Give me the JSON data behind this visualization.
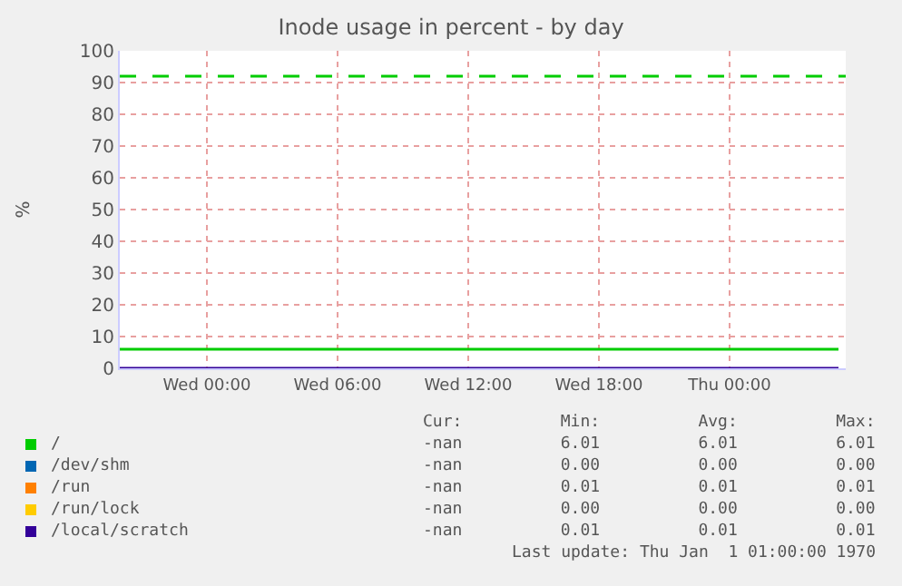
{
  "chart_data": {
    "type": "line",
    "title": "Inode usage in percent - by day",
    "ylabel": "%",
    "x": [
      "--01-05T20:00",
      "--01-07T05:00"
    ],
    "series": [
      {
        "name": "/",
        "color": "#00cc00",
        "values": [
          6.01,
          6.01
        ]
      },
      {
        "name": "/dev/shm",
        "color": "#0066b3",
        "values": [
          null,
          null
        ]
      },
      {
        "name": "/run",
        "color": "#ff8000",
        "values": [
          null,
          null
        ]
      },
      {
        "name": "/run/lock",
        "color": "#ffcc00",
        "values": [
          null,
          null
        ]
      },
      {
        "name": "/local/scratch",
        "color": "#330099",
        "values": [
          0.01,
          0.01
        ]
      }
    ],
    "xlim": [
      "--01-05T20:00",
      "--01-07T05:20"
    ],
    "xticks": [
      {
        "value": "--01-06T00:00",
        "label": "Wed 00:00"
      },
      {
        "value": "--01-06T06:00",
        "label": "Wed 06:00"
      },
      {
        "value": "--01-06T12:00",
        "label": "Wed 12:00"
      },
      {
        "value": "--01-06T18:00",
        "label": "Wed 18:00"
      },
      {
        "value": "--01-07T00:00",
        "label": "Thu 00:00"
      }
    ],
    "ylim": [
      0,
      100
    ],
    "yticks": [
      0,
      10,
      20,
      30,
      40,
      50,
      60,
      70,
      80,
      90,
      100
    ],
    "ref_lines": [
      {
        "axis": "y",
        "value": 92,
        "color": "#00cc00",
        "line_style": "dashed"
      }
    ],
    "grid": true,
    "legend": "bottom",
    "marker": "none",
    "line_style": "solid",
    "annotations": [
      "Cur:          Min:          Avg:          Max:",
      "-nan          6.01          6.01          6.01",
      "-nan          0.00          0.00          0.00",
      "-nan          0.01          0.01          0.01",
      "-nan          0.00          0.00          0.00",
      "-nan          0.01          0.01          0.01",
      "Last update: Thu Jan  1 01:00:00 1970"
    ]
  }
}
